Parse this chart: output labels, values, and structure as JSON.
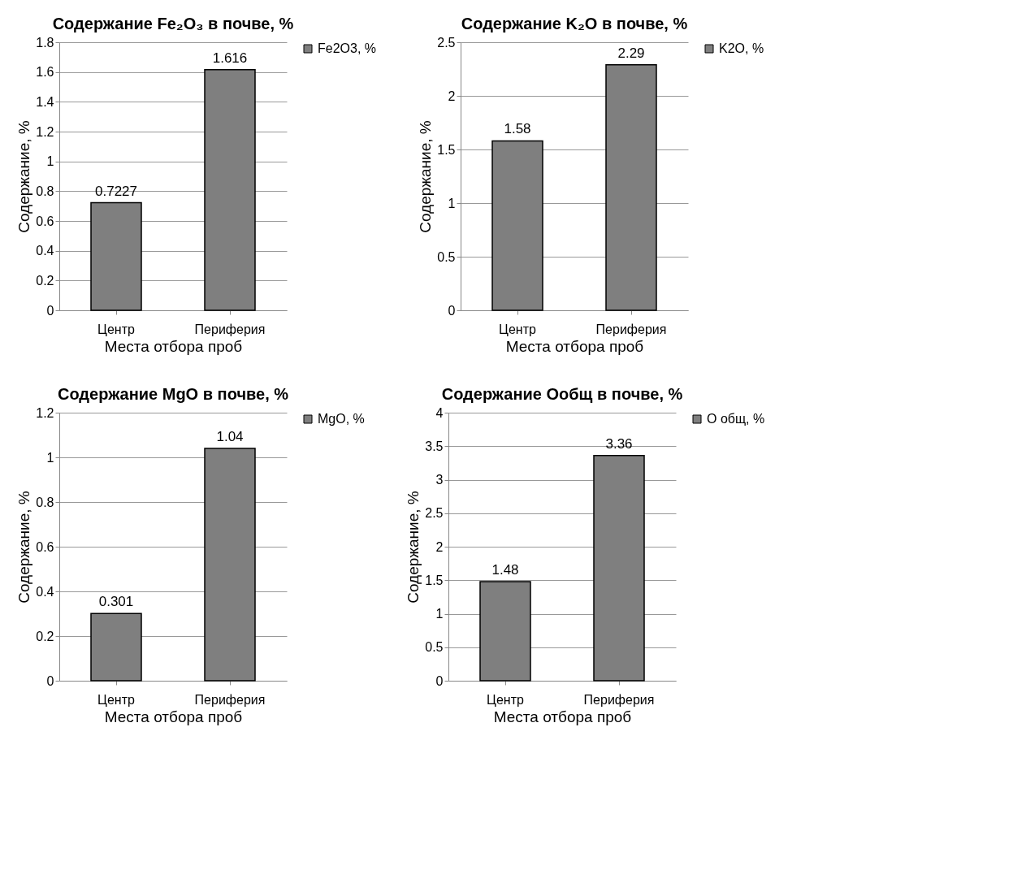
{
  "chart_data": [
    {
      "type": "bar",
      "title": "Содержание Fe₂O₃ в почве, %",
      "xlabel": "Места отбора проб",
      "ylabel": "Содержание, %",
      "categories": [
        "Центр",
        "Периферия"
      ],
      "series": [
        {
          "name": "Fe2O3, %",
          "color": "#7f7f7f",
          "values": [
            0.7227,
            1.616
          ]
        }
      ],
      "ylim": [
        0,
        1.8
      ],
      "yticks": [
        0,
        0.2,
        0.4,
        0.6,
        0.8,
        1,
        1.2,
        1.4,
        1.6,
        1.8
      ],
      "grid": "y",
      "legend": "right",
      "data_labels": true
    },
    {
      "type": "bar",
      "title": "Содержание K₂O в почве, %",
      "xlabel": "Места отбора проб",
      "ylabel": "Содержание, %",
      "categories": [
        "Центр",
        "Периферия"
      ],
      "series": [
        {
          "name": "K2O, %",
          "color": "#7f7f7f",
          "values": [
            1.58,
            2.29
          ]
        }
      ],
      "ylim": [
        0,
        2.5
      ],
      "yticks": [
        0,
        0.5,
        1,
        1.5,
        2,
        2.5
      ],
      "grid": "y",
      "legend": "right",
      "data_labels": true
    },
    {
      "type": "bar",
      "title": "Содержание MgO в почве, %",
      "xlabel": "Места отбора проб",
      "ylabel": "Содержание, %",
      "categories": [
        "Центр",
        "Периферия"
      ],
      "series": [
        {
          "name": "MgO, %",
          "color": "#7f7f7f",
          "values": [
            0.301,
            1.04
          ]
        }
      ],
      "ylim": [
        0,
        1.2
      ],
      "yticks": [
        0,
        0.2,
        0.4,
        0.6,
        0.8,
        1,
        1.2
      ],
      "grid": "y",
      "legend": "right",
      "data_labels": true
    },
    {
      "type": "bar",
      "title": "Содержание Oобщ в почве, %",
      "xlabel": "Места отбора проб",
      "ylabel": "Содержание, %",
      "categories": [
        "Центр",
        "Периферия"
      ],
      "series": [
        {
          "name": "O общ, %",
          "color": "#7f7f7f",
          "values": [
            1.48,
            3.36
          ]
        }
      ],
      "ylim": [
        0,
        4
      ],
      "yticks": [
        0,
        0.5,
        1,
        1.5,
        2,
        2.5,
        3,
        3.5,
        4
      ],
      "grid": "y",
      "legend": "right",
      "data_labels": true
    }
  ]
}
